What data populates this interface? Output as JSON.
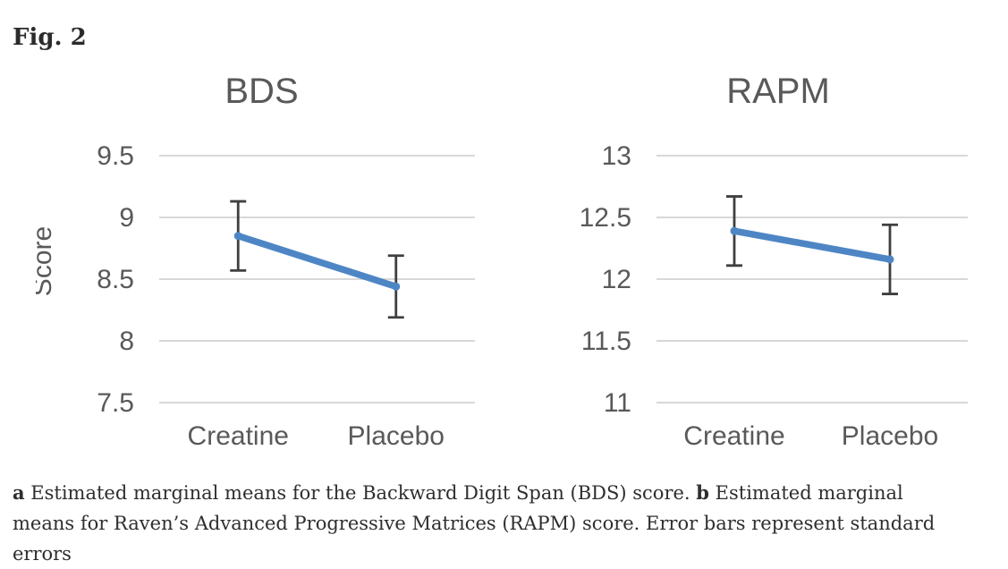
{
  "figure": {
    "label": "Fig. 2"
  },
  "caption": {
    "a_label": "a",
    "a_text": "Estimated marginal means for the Backward Digit Span (BDS) score.",
    "b_label": "b",
    "b_text": "Estimated marginal means for Raven’s Advanced Progressive Matrices (RAPM) score. Error bars represent standard errors"
  },
  "chart_style": {
    "line_color": "#4E86C5",
    "error_bar_color": "#3F3F3F",
    "gridline_color": "#D8D8D8",
    "axis_text_color": "#595959",
    "title_color": "#595959"
  },
  "chart_data": [
    {
      "type": "line",
      "title": "BDS",
      "ylabel": "Score",
      "xlabel": "",
      "categories": [
        "Creatine",
        "Placebo"
      ],
      "series": [
        {
          "values": [
            8.85,
            8.44
          ],
          "std_errors": [
            0.28,
            0.25
          ]
        }
      ],
      "yticks": [
        9.5,
        9,
        8.5,
        8,
        7.5
      ],
      "ylim": [
        7.5,
        9.5
      ],
      "grid": true,
      "legend": false
    },
    {
      "type": "line",
      "title": "RAPM",
      "ylabel": "",
      "xlabel": "",
      "categories": [
        "Creatine",
        "Placebo"
      ],
      "series": [
        {
          "values": [
            12.39,
            12.16
          ],
          "std_errors": [
            0.28,
            0.28
          ]
        }
      ],
      "yticks": [
        13,
        12.5,
        12,
        11.5,
        11
      ],
      "ylim": [
        11,
        13
      ],
      "grid": true,
      "legend": false
    }
  ]
}
